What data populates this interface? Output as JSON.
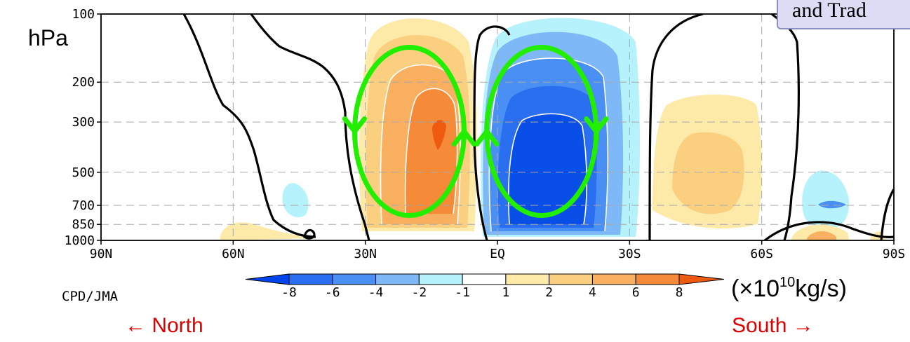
{
  "chart_data": {
    "type": "heatmap",
    "subtype": "latitude-pressure filled contour (mass stream function anomaly)",
    "ylabel": "hPa",
    "y_axis": {
      "scale": "log",
      "range_hpa": [
        1000,
        100
      ],
      "ticks": [
        "100",
        "200",
        "300",
        "500",
        "700",
        "850",
        "1000"
      ]
    },
    "x_axis": {
      "range": [
        "90N",
        "90S"
      ],
      "ticks": [
        "90N",
        "60N",
        "30N",
        "EQ",
        "30S",
        "60S",
        "90S"
      ]
    },
    "grid": true,
    "colorbar": {
      "levels": [
        "-8",
        "-6",
        "-4",
        "-2",
        "-1",
        "1",
        "2",
        "4",
        "6",
        "8"
      ],
      "colors": [
        "#0044ee",
        "#2a6ff0",
        "#4a8ff4",
        "#7fb8f6",
        "#b6f2fb",
        "#ffffff",
        "#fde9a8",
        "#fbcf80",
        "#f8b060",
        "#f58a38",
        "#ee5a10"
      ],
      "unit_prefix": "(×10",
      "unit_exp": "10",
      "unit_suffix": "kg/s)"
    },
    "features": [
      {
        "kind": "positive cell",
        "lat_center": "20N",
        "top_hpa": 100,
        "max_level": "8"
      },
      {
        "kind": "negative cell",
        "lat_center": "10S",
        "top_hpa": 130,
        "max_level": "-8"
      },
      {
        "kind": "positive cell",
        "lat_center": "45S",
        "top_hpa": 260,
        "max_level": "4"
      },
      {
        "kind": "negative cell",
        "lat_center": "75S",
        "top_hpa": 600,
        "max_level": "-6"
      }
    ],
    "circulation_arrows": {
      "color": "#22ee00",
      "cells": [
        {
          "lat_center": "20N",
          "left_side": "down",
          "right_side": "up"
        },
        {
          "lat_center": "10S",
          "left_side": "up",
          "right_side": "down"
        }
      ]
    }
  },
  "labels": {
    "hpa": "hPa",
    "credit": "CPD/JMA",
    "north": "← North",
    "south": "South →",
    "callout": "and Trad"
  }
}
